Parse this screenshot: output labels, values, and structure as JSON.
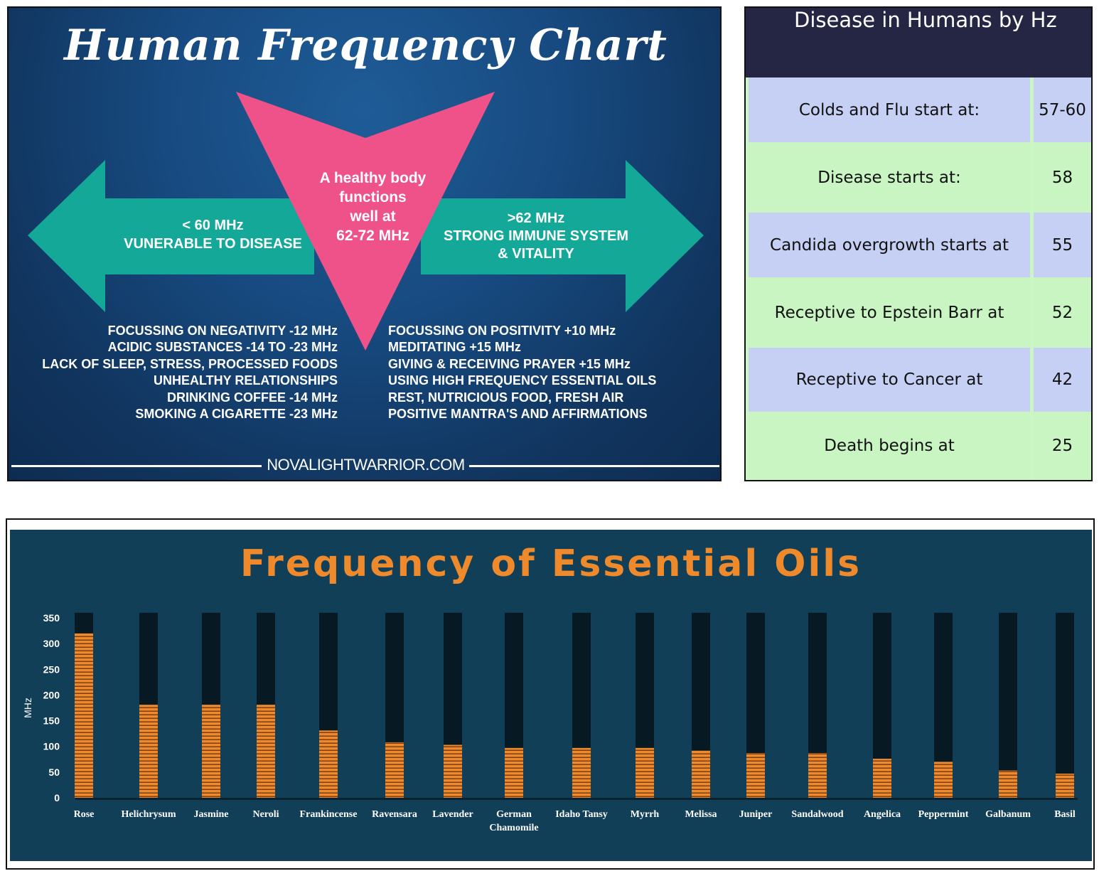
{
  "human_chart": {
    "title": "Human Frequency Chart",
    "center_text": [
      "A healthy body",
      "functions",
      "well at",
      "62-72 MHz"
    ],
    "left_arrow": [
      "< 60 MHz",
      "VUNERABLE TO DISEASE"
    ],
    "right_arrow": [
      ">62 MHz",
      "STRONG IMMUNE SYSTEM",
      "& VITALITY"
    ],
    "negatives": [
      "FOCUSSING ON NEGATIVITY -12 MHz",
      "ACIDIC SUBSTANCES -14 TO -23 MHz",
      "LACK OF SLEEP, STRESS, PROCESSED FOODS",
      "UNHEALTHY RELATIONSHIPS",
      "DRINKING COFFEE -14 MHz",
      "SMOKING A CIGARETTE -23 MHz"
    ],
    "positives": [
      "FOCUSSING ON POSITIVITY +10 MHz",
      "MEDITATING +15 MHz",
      "GIVING & RECEIVING PRAYER +15 MHz",
      "USING HIGH FREQUENCY ESSENTIAL OILS",
      "REST, NUTRICIOUS FOOD, FRESH AIR",
      "POSITIVE MANTRA'S AND AFFIRMATIONS"
    ],
    "website": "NOVALIGHTWARRIOR.COM",
    "colors": {
      "arrow": "#13a898",
      "triangle": "#ee5289",
      "background": "#174a80"
    }
  },
  "disease_table": {
    "title": "Disease in Humans by Hz",
    "rows": [
      {
        "label": "Colds and Flu start at:",
        "value": "57-60"
      },
      {
        "label": "Disease starts at:",
        "value": "58"
      },
      {
        "label": "Candida overgrowth starts at",
        "value": "55"
      },
      {
        "label": "Receptive to Epstein Barr at",
        "value": "52"
      },
      {
        "label": "Receptive to Cancer at",
        "value": "42"
      },
      {
        "label": "Death begins at",
        "value": "25"
      }
    ],
    "colors": {
      "header": "#252544",
      "row_blue": "#c5d0f4",
      "row_green": "#c8f5c2"
    }
  },
  "chart_data": {
    "type": "bar",
    "title": "Frequency of Essential Oils",
    "ylabel": "MHz",
    "xlabel": "",
    "ylim": [
      0,
      360
    ],
    "yticks": [
      0,
      50,
      100,
      150,
      200,
      250,
      300,
      350
    ],
    "categories": [
      "Rose",
      "Helichrysum",
      "Jasmine",
      "Neroli",
      "Frankincense",
      "Ravensara",
      "Lavender",
      "German Chamomile",
      "Idaho Tansy",
      "Myrrh",
      "Melissa",
      "Juniper",
      "Sandalwood",
      "Angelica",
      "Peppermint",
      "Galbanum",
      "Basil"
    ],
    "values": [
      320,
      181,
      181,
      181,
      131,
      108,
      103,
      97,
      97,
      97,
      92,
      87,
      87,
      76,
      70,
      53,
      47
    ],
    "grid": false,
    "colors": {
      "bar": "#ee8a2c",
      "track": "#071a24",
      "background": "#123f58",
      "title": "#ee8a2c"
    }
  }
}
